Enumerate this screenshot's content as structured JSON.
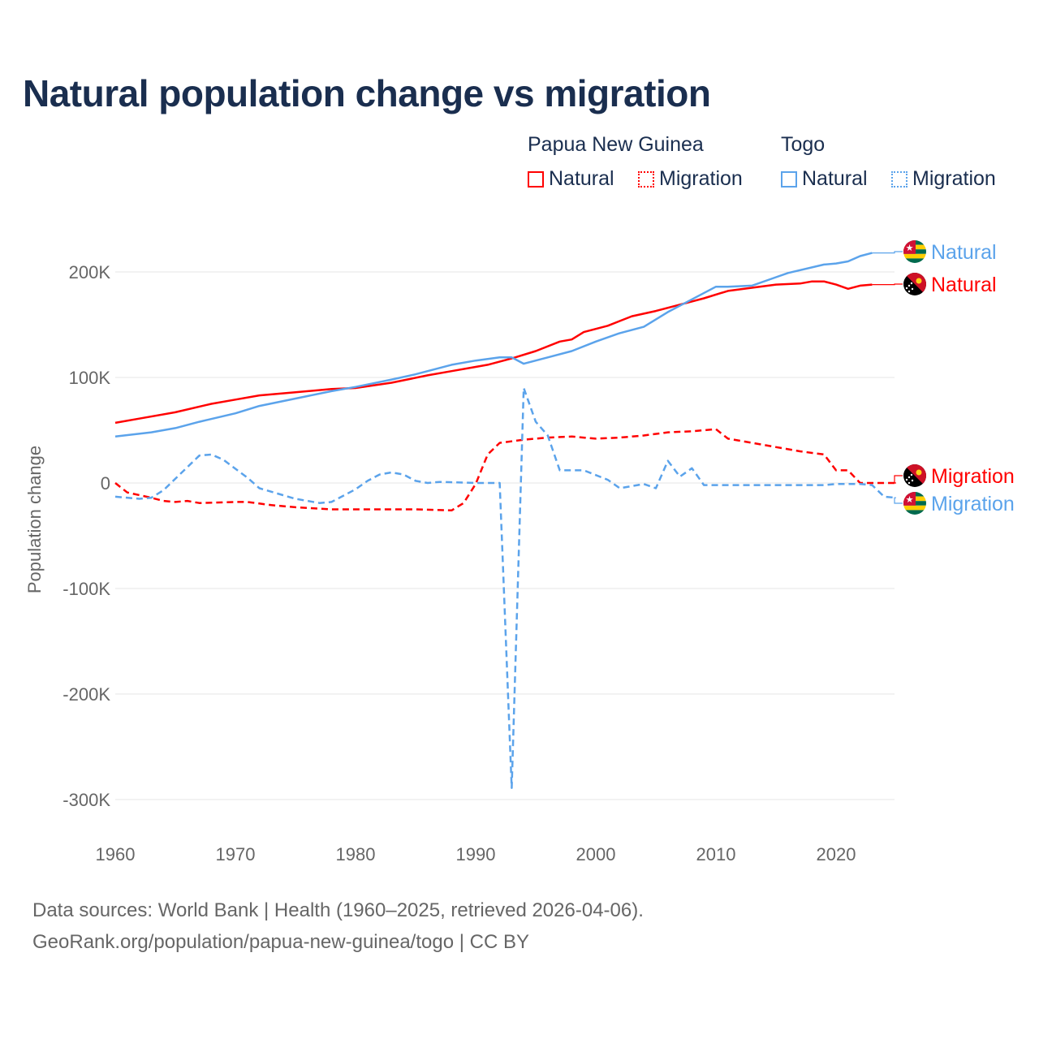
{
  "title": "Natural population change vs migration",
  "legend": {
    "groups": [
      {
        "name": "Papua New Guinea",
        "color": "#ff0000",
        "items": [
          "Natural",
          "Migration"
        ]
      },
      {
        "name": "Togo",
        "color": "#5ba3eb",
        "items": [
          "Natural",
          "Migration"
        ]
      }
    ]
  },
  "footer": {
    "line1": "Data sources: World Bank | Health (1960–2025, retrieved 2026-04-06).",
    "line2": "GeoRank.org/population/papua-new-guinea/togo | CC BY"
  },
  "chart_data": {
    "type": "line",
    "title": "Natural population change vs migration",
    "xlabel": "",
    "ylabel": "Population change",
    "xlim": [
      1960,
      2025
    ],
    "ylim": [
      -300000,
      230000
    ],
    "x_ticks": [
      "1960",
      "1970",
      "1980",
      "1990",
      "2000",
      "2010",
      "2020"
    ],
    "y_ticks": [
      {
        "v": 200000,
        "label": "200K"
      },
      {
        "v": 100000,
        "label": "100K"
      },
      {
        "v": 0,
        "label": "0"
      },
      {
        "v": -100000,
        "label": "-100K"
      },
      {
        "v": -200000,
        "label": "-200K"
      },
      {
        "v": -300000,
        "label": "-300K"
      }
    ],
    "grid": true,
    "series": [
      {
        "name": "Papua New Guinea Natural",
        "label": "Natural",
        "country": "png",
        "color": "#ff0000",
        "dashed": false,
        "points": [
          [
            1960,
            57
          ],
          [
            1962,
            61
          ],
          [
            1965,
            67
          ],
          [
            1968,
            75
          ],
          [
            1970,
            79
          ],
          [
            1972,
            83
          ],
          [
            1975,
            86
          ],
          [
            1978,
            89
          ],
          [
            1980,
            90
          ],
          [
            1983,
            95
          ],
          [
            1986,
            102
          ],
          [
            1988,
            106
          ],
          [
            1990,
            110
          ],
          [
            1991,
            112
          ],
          [
            1993,
            118
          ],
          [
            1995,
            125
          ],
          [
            1997,
            134
          ],
          [
            1998,
            136
          ],
          [
            1999,
            143
          ],
          [
            2001,
            149
          ],
          [
            2003,
            158
          ],
          [
            2005,
            163
          ],
          [
            2007,
            169
          ],
          [
            2009,
            175
          ],
          [
            2011,
            182
          ],
          [
            2013,
            185
          ],
          [
            2015,
            188
          ],
          [
            2017,
            189
          ],
          [
            2018,
            191
          ],
          [
            2019,
            191
          ],
          [
            2020,
            188
          ],
          [
            2021,
            184
          ],
          [
            2022,
            187
          ],
          [
            2023,
            188
          ]
        ]
      },
      {
        "name": "Togo Natural",
        "label": "Natural",
        "country": "togo",
        "color": "#5ba3eb",
        "dashed": false,
        "points": [
          [
            1960,
            44
          ],
          [
            1963,
            48
          ],
          [
            1965,
            52
          ],
          [
            1967,
            58
          ],
          [
            1970,
            66
          ],
          [
            1972,
            73
          ],
          [
            1975,
            80
          ],
          [
            1978,
            87
          ],
          [
            1980,
            91
          ],
          [
            1983,
            98
          ],
          [
            1985,
            103
          ],
          [
            1987,
            109
          ],
          [
            1988,
            112
          ],
          [
            1990,
            116
          ],
          [
            1992,
            119
          ],
          [
            1993,
            119
          ],
          [
            1994,
            113
          ],
          [
            1996,
            119
          ],
          [
            1998,
            125
          ],
          [
            2000,
            134
          ],
          [
            2002,
            142
          ],
          [
            2004,
            148
          ],
          [
            2006,
            162
          ],
          [
            2008,
            174
          ],
          [
            2010,
            186
          ],
          [
            2011,
            186
          ],
          [
            2013,
            187
          ],
          [
            2015,
            195
          ],
          [
            2016,
            199
          ],
          [
            2019,
            207
          ],
          [
            2020,
            208
          ],
          [
            2021,
            210
          ],
          [
            2022,
            215
          ],
          [
            2023,
            218
          ]
        ]
      },
      {
        "name": "Papua New Guinea Migration",
        "label": "Migration",
        "country": "png",
        "color": "#ff0000",
        "dashed": true,
        "points": [
          [
            1960,
            0
          ],
          [
            1961,
            -9
          ],
          [
            1963,
            -14
          ],
          [
            1964,
            -17
          ],
          [
            1965,
            -18
          ],
          [
            1966,
            -17
          ],
          [
            1967,
            -19
          ],
          [
            1970,
            -18
          ],
          [
            1971,
            -18
          ],
          [
            1973,
            -21
          ],
          [
            1975,
            -23
          ],
          [
            1978,
            -25
          ],
          [
            1980,
            -25
          ],
          [
            1985,
            -25
          ],
          [
            1988,
            -26
          ],
          [
            1989,
            -19
          ],
          [
            1990,
            -1
          ],
          [
            1991,
            27
          ],
          [
            1992,
            38
          ],
          [
            1994,
            41
          ],
          [
            1996,
            43
          ],
          [
            1998,
            44
          ],
          [
            2000,
            42
          ],
          [
            2002,
            43
          ],
          [
            2004,
            45
          ],
          [
            2006,
            48
          ],
          [
            2008,
            49
          ],
          [
            2010,
            51
          ],
          [
            2011,
            42
          ],
          [
            2013,
            38
          ],
          [
            2015,
            34
          ],
          [
            2017,
            30
          ],
          [
            2019,
            27
          ],
          [
            2020,
            12
          ],
          [
            2021,
            12
          ],
          [
            2022,
            0
          ],
          [
            2025,
            0
          ]
        ]
      },
      {
        "name": "Togo Migration",
        "label": "Migration",
        "country": "togo",
        "color": "#5ba3eb",
        "dashed": true,
        "points": [
          [
            1960,
            -13
          ],
          [
            1962,
            -15
          ],
          [
            1963,
            -14
          ],
          [
            1964,
            -7
          ],
          [
            1966,
            15
          ],
          [
            1967,
            26
          ],
          [
            1968,
            27
          ],
          [
            1969,
            22
          ],
          [
            1971,
            5
          ],
          [
            1972,
            -5
          ],
          [
            1975,
            -15
          ],
          [
            1977,
            -19
          ],
          [
            1978,
            -18
          ],
          [
            1980,
            -6
          ],
          [
            1981,
            2
          ],
          [
            1982,
            8
          ],
          [
            1983,
            10
          ],
          [
            1984,
            8
          ],
          [
            1985,
            2
          ],
          [
            1986,
            0
          ],
          [
            1987,
            1
          ],
          [
            1990,
            0
          ],
          [
            1992,
            0
          ],
          [
            1993,
            -289
          ],
          [
            1994,
            90
          ],
          [
            1995,
            58
          ],
          [
            1996,
            45
          ],
          [
            1997,
            12
          ],
          [
            1998,
            12
          ],
          [
            1999,
            12
          ],
          [
            2001,
            3
          ],
          [
            2002,
            -5
          ],
          [
            2004,
            -1
          ],
          [
            2005,
            -5
          ],
          [
            2006,
            21
          ],
          [
            2007,
            6
          ],
          [
            2008,
            14
          ],
          [
            2009,
            -2
          ],
          [
            2019,
            -2
          ],
          [
            2020,
            -1
          ],
          [
            2022,
            -1
          ],
          [
            2023,
            -2
          ],
          [
            2024,
            -13
          ],
          [
            2025,
            -14
          ]
        ]
      }
    ],
    "value_unit": "thousands"
  }
}
